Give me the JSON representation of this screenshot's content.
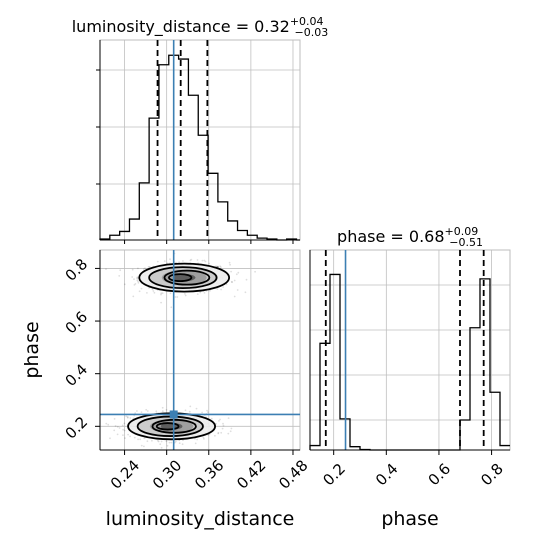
{
  "chart_data": {
    "type": "corner",
    "parameters": [
      "luminosity_distance",
      "phase"
    ],
    "truth": {
      "luminosity_distance": 0.31,
      "phase": 0.245
    },
    "colors": {
      "truth": "#3c7fb3",
      "hist": "#000000",
      "grid": "#bfbfbf"
    },
    "panels": [
      {
        "id": "ld-hist",
        "type": "histogram",
        "parameter": "luminosity_distance",
        "title": {
          "main": "luminosity_distance = 0.32",
          "sup": "+0.04",
          "sub": "−0.03"
        },
        "xlim": [
          0.205,
          0.49
        ],
        "ymax": 1.05,
        "bin_edges": [
          0.205,
          0.219,
          0.233,
          0.247,
          0.261,
          0.275,
          0.289,
          0.303,
          0.317,
          0.331,
          0.345,
          0.359,
          0.373,
          0.387,
          0.401,
          0.415,
          0.429,
          0.443,
          0.457,
          0.471,
          0.485,
          0.49
        ],
        "counts": [
          0.005,
          0.025,
          0.045,
          0.11,
          0.3,
          0.64,
          0.92,
          0.97,
          0.95,
          0.76,
          0.55,
          0.35,
          0.2,
          0.1,
          0.05,
          0.025,
          0.01,
          0.005,
          0,
          0.005,
          0
        ],
        "quantiles": [
          0.287,
          0.32,
          0.358
        ]
      },
      {
        "id": "phase-hist",
        "type": "histogram",
        "parameter": "phase",
        "title": {
          "main": "phase = 0.68",
          "sup": "+0.09",
          "sub": "−0.51"
        },
        "xlim": [
          0.11,
          0.87
        ],
        "ymax": 0.9,
        "bin_edges": [
          0.11,
          0.148,
          0.186,
          0.224,
          0.262,
          0.3,
          0.338,
          0.376,
          0.414,
          0.452,
          0.49,
          0.528,
          0.566,
          0.604,
          0.642,
          0.68,
          0.718,
          0.756,
          0.794,
          0.832,
          0.87
        ],
        "counts": [
          0.02,
          0.48,
          0.79,
          0.14,
          0.015,
          0.002,
          0,
          0,
          0,
          0,
          0,
          0,
          0,
          0,
          0,
          0.135,
          0.55,
          0.77,
          0.26,
          0.02
        ],
        "quantiles": [
          0.17,
          0.68,
          0.77
        ]
      },
      {
        "id": "ld-phase-2d",
        "type": "scatter-contour",
        "x": "luminosity_distance",
        "y": "phase",
        "xlim": [
          0.205,
          0.49
        ],
        "ylim": [
          0.11,
          0.87
        ],
        "blobs": [
          {
            "center": [
              0.325,
              0.765
            ],
            "spread": [
              0.032,
              0.028
            ]
          },
          {
            "center": [
              0.307,
              0.2
            ],
            "spread": [
              0.031,
              0.026
            ]
          }
        ]
      }
    ],
    "axes": {
      "ld_ticks": [
        "0.24",
        "0.30",
        "0.36",
        "0.42",
        "0.48"
      ],
      "ld_tick_values": [
        0.24,
        0.3,
        0.36,
        0.42,
        0.48
      ],
      "phase_ticks": [
        "0.2",
        "0.4",
        "0.6",
        "0.8"
      ],
      "phase_tick_values": [
        0.2,
        0.4,
        0.6,
        0.8
      ],
      "xlabel_left": "luminosity_distance",
      "xlabel_right": "phase",
      "ylabel": "phase"
    }
  }
}
